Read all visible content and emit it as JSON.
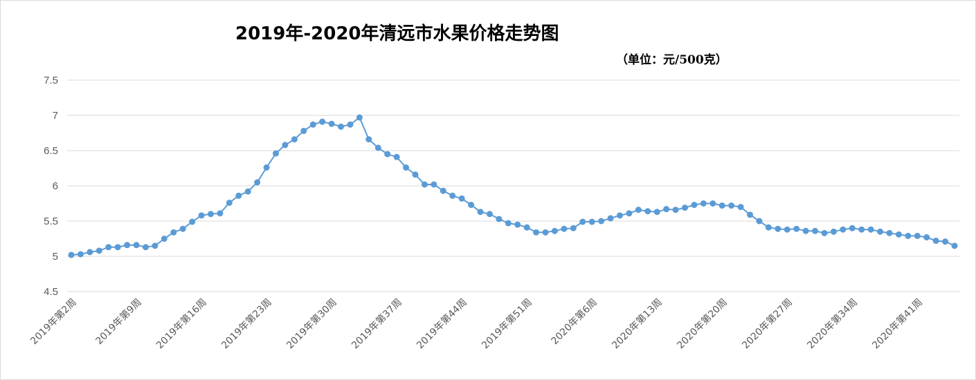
{
  "chart_data": {
    "type": "line",
    "title": "2019年-2020年清远市水果价格走势图",
    "subtitle": "（单位：元/500克）",
    "xlabel": "",
    "ylabel": "",
    "ylim": [
      4.5,
      7.5
    ],
    "yticks": [
      "4.5",
      "5",
      "5.5",
      "6",
      "6.5",
      "7",
      "7.5"
    ],
    "grid": true,
    "legend": "none",
    "line_color": "#5b9bd5",
    "x_tick_labels": [
      {
        "index": 0,
        "label": "2019年第2周"
      },
      {
        "index": 7,
        "label": "2019年第9周"
      },
      {
        "index": 14,
        "label": "2019年第16周"
      },
      {
        "index": 21,
        "label": "2019年第23周"
      },
      {
        "index": 28,
        "label": "2019年第30周"
      },
      {
        "index": 35,
        "label": "2019年第37周"
      },
      {
        "index": 42,
        "label": "2019年第44周"
      },
      {
        "index": 49,
        "label": "2019年第51周"
      },
      {
        "index": 56,
        "label": "2020年第6周"
      },
      {
        "index": 63,
        "label": "2020年第13周"
      },
      {
        "index": 70,
        "label": "2020年第20周"
      },
      {
        "index": 77,
        "label": "2020年第27周"
      },
      {
        "index": 84,
        "label": "2020年第34周"
      },
      {
        "index": 91,
        "label": "2020年第41周"
      }
    ],
    "series": [
      {
        "values": [
          5.02,
          5.03,
          5.06,
          5.08,
          5.13,
          5.13,
          5.16,
          5.16,
          5.13,
          5.15,
          5.25,
          5.34,
          5.39,
          5.49,
          5.58,
          5.6,
          5.61,
          5.76,
          5.86,
          5.92,
          6.05,
          6.26,
          6.46,
          6.58,
          6.66,
          6.78,
          6.87,
          6.91,
          6.88,
          6.84,
          6.87,
          6.97,
          6.66,
          6.54,
          6.45,
          6.41,
          6.26,
          6.16,
          6.02,
          6.02,
          5.93,
          5.86,
          5.82,
          5.73,
          5.63,
          5.6,
          5.53,
          5.47,
          5.45,
          5.41,
          5.34,
          5.34,
          5.36,
          5.39,
          5.4,
          5.49,
          5.49,
          5.5,
          5.54,
          5.58,
          5.61,
          5.66,
          5.64,
          5.63,
          5.67,
          5.66,
          5.69,
          5.73,
          5.75,
          5.75,
          5.72,
          5.72,
          5.7,
          5.59,
          5.5,
          5.41,
          5.39,
          5.38,
          5.39,
          5.36,
          5.36,
          5.33,
          5.35,
          5.38,
          5.4,
          5.38,
          5.38,
          5.35,
          5.33,
          5.31,
          5.29,
          5.29,
          5.27,
          5.22,
          5.21,
          5.15
        ]
      }
    ]
  }
}
